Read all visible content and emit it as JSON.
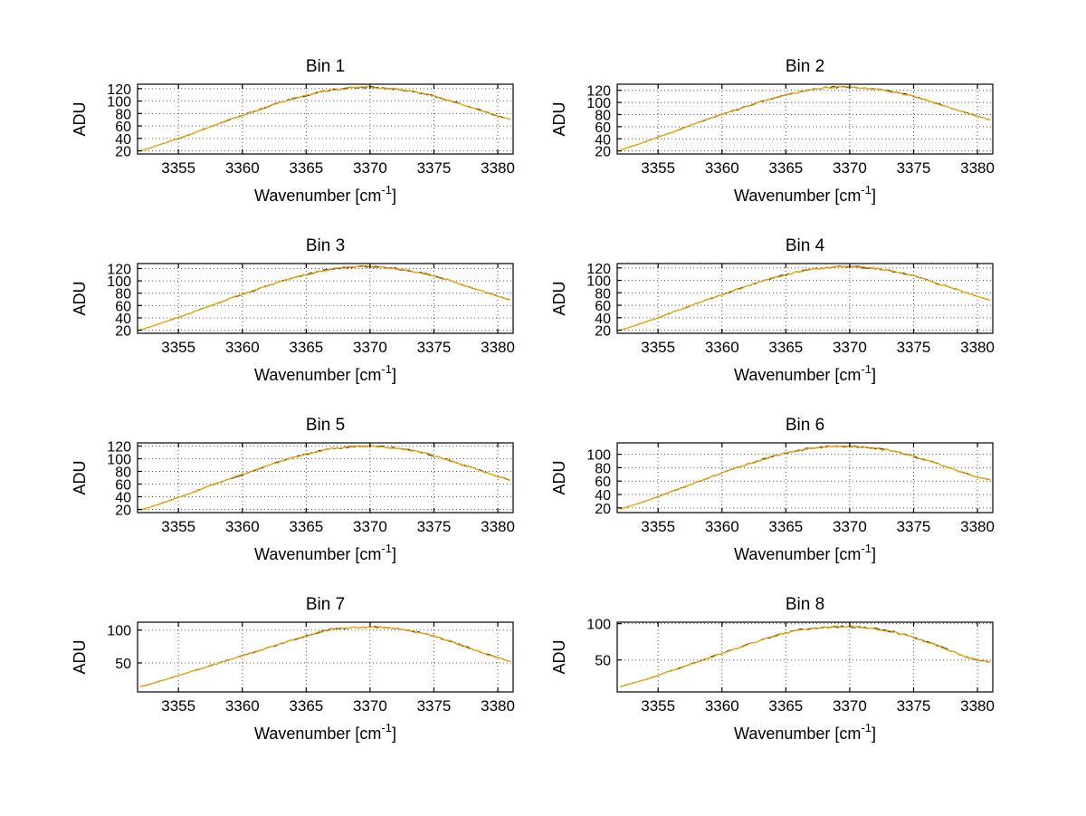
{
  "figure": {
    "background": "#ffffff",
    "line_color": "#f0a500",
    "speck_color": "#2a2a2a",
    "axis_color": "#000000",
    "grid_color": "#555555"
  },
  "shared_x": [
    3352,
    3353,
    3354,
    3355,
    3356,
    3357,
    3358,
    3359,
    3360,
    3361,
    3362,
    3363,
    3364,
    3365,
    3366,
    3367,
    3368,
    3369,
    3370,
    3371,
    3372,
    3373,
    3374,
    3375,
    3376,
    3377,
    3378,
    3379,
    3380,
    3381
  ],
  "chart_data": [
    {
      "type": "line",
      "title": "Bin 1",
      "xlabel": "Wavenumber [cm^-1]",
      "xlabel_pre": "Wavenumber [cm",
      "xlabel_sup": "-1",
      "xlabel_post": "]",
      "ylabel": "ADU",
      "xlim": [
        3351.8,
        3381.2
      ],
      "ylim": [
        15,
        127
      ],
      "xticks": [
        3355,
        3360,
        3365,
        3370,
        3375,
        3380
      ],
      "yticks": [
        20,
        40,
        60,
        80,
        100,
        120
      ],
      "grid": true,
      "legend": "none",
      "y": [
        20,
        26,
        33,
        40,
        47,
        55,
        62,
        70,
        77,
        84,
        91,
        98,
        104,
        109,
        114,
        118,
        120,
        122,
        122,
        121,
        119,
        117,
        113,
        108,
        102,
        96,
        89,
        83,
        76,
        70
      ]
    },
    {
      "type": "line",
      "title": "Bin 2",
      "xlabel": "Wavenumber [cm^-1]",
      "xlabel_pre": "Wavenumber [cm",
      "xlabel_sup": "-1",
      "xlabel_post": "]",
      "ylabel": "ADU",
      "xlim": [
        3351.8,
        3381.2
      ],
      "ylim": [
        15,
        130
      ],
      "xticks": [
        3355,
        3360,
        3365,
        3370,
        3375,
        3380
      ],
      "yticks": [
        20,
        40,
        60,
        80,
        100,
        120
      ],
      "grid": true,
      "legend": "none",
      "y": [
        21,
        28,
        35,
        43,
        50,
        58,
        66,
        73,
        80,
        87,
        94,
        101,
        107,
        112,
        117,
        121,
        124,
        125,
        125,
        124,
        122,
        119,
        115,
        110,
        104,
        97,
        90,
        84,
        77,
        71
      ]
    },
    {
      "type": "line",
      "title": "Bin 3",
      "xlabel": "Wavenumber [cm^-1]",
      "xlabel_pre": "Wavenumber [cm",
      "xlabel_sup": "-1",
      "xlabel_post": "]",
      "ylabel": "ADU",
      "xlim": [
        3351.8,
        3381.2
      ],
      "ylim": [
        15,
        128
      ],
      "xticks": [
        3355,
        3360,
        3365,
        3370,
        3375,
        3380
      ],
      "yticks": [
        20,
        40,
        60,
        80,
        100,
        120
      ],
      "grid": true,
      "legend": "none",
      "y": [
        20,
        27,
        34,
        41,
        48,
        56,
        63,
        71,
        78,
        85,
        92,
        99,
        105,
        110,
        115,
        119,
        121,
        123,
        123,
        122,
        120,
        117,
        113,
        108,
        102,
        95,
        88,
        82,
        75,
        69
      ]
    },
    {
      "type": "line",
      "title": "Bin 4",
      "xlabel": "Wavenumber [cm^-1]",
      "xlabel_pre": "Wavenumber [cm",
      "xlabel_sup": "-1",
      "xlabel_post": "]",
      "ylabel": "ADU",
      "xlim": [
        3351.8,
        3381.2
      ],
      "ylim": [
        15,
        127
      ],
      "xticks": [
        3355,
        3360,
        3365,
        3370,
        3375,
        3380
      ],
      "yticks": [
        20,
        40,
        60,
        80,
        100,
        120
      ],
      "grid": true,
      "legend": "none",
      "y": [
        20,
        26,
        33,
        40,
        48,
        55,
        63,
        70,
        77,
        84,
        91,
        98,
        104,
        109,
        114,
        118,
        120,
        122,
        122,
        121,
        119,
        116,
        112,
        107,
        101,
        94,
        88,
        81,
        74,
        68
      ]
    },
    {
      "type": "line",
      "title": "Bin 5",
      "xlabel": "Wavenumber [cm^-1]",
      "xlabel_pre": "Wavenumber [cm",
      "xlabel_sup": "-1",
      "xlabel_post": "]",
      "ylabel": "ADU",
      "xlim": [
        3351.8,
        3381.2
      ],
      "ylim": [
        15,
        125
      ],
      "xticks": [
        3355,
        3360,
        3365,
        3370,
        3375,
        3380
      ],
      "yticks": [
        20,
        40,
        60,
        80,
        100,
        120
      ],
      "grid": true,
      "legend": "none",
      "y": [
        19,
        25,
        32,
        39,
        46,
        54,
        61,
        68,
        75,
        82,
        89,
        96,
        102,
        107,
        112,
        116,
        118,
        120,
        120,
        119,
        117,
        114,
        110,
        105,
        99,
        92,
        86,
        79,
        72,
        66
      ]
    },
    {
      "type": "line",
      "title": "Bin 6",
      "xlabel": "Wavenumber [cm^-1]",
      "xlabel_pre": "Wavenumber [cm",
      "xlabel_sup": "-1",
      "xlabel_post": "]",
      "ylabel": "ADU",
      "xlim": [
        3351.8,
        3381.2
      ],
      "ylim": [
        13,
        117
      ],
      "xticks": [
        3355,
        3360,
        3365,
        3370,
        3375,
        3380
      ],
      "yticks": [
        20,
        40,
        60,
        80,
        100
      ],
      "grid": true,
      "legend": "none",
      "y": [
        18,
        24,
        30,
        37,
        44,
        51,
        58,
        65,
        72,
        79,
        85,
        91,
        97,
        102,
        106,
        109,
        111,
        112,
        112,
        111,
        109,
        106,
        102,
        97,
        91,
        85,
        78,
        72,
        66,
        62
      ]
    },
    {
      "type": "line",
      "title": "Bin 7",
      "xlabel": "Wavenumber [cm^-1]",
      "xlabel_pre": "Wavenumber [cm",
      "xlabel_sup": "-1",
      "xlabel_post": "]",
      "ylabel": "ADU",
      "xlim": [
        3351.8,
        3381.2
      ],
      "ylim": [
        6,
        112
      ],
      "xticks": [
        3355,
        3360,
        3365,
        3370,
        3375,
        3380
      ],
      "yticks": [
        50,
        100
      ],
      "grid": true,
      "legend": "none",
      "y": [
        14,
        19,
        25,
        31,
        37,
        43,
        49,
        55,
        61,
        67,
        73,
        79,
        85,
        91,
        97,
        101,
        103,
        104,
        105,
        104,
        103,
        100,
        96,
        91,
        85,
        78,
        71,
        64,
        58,
        52
      ]
    },
    {
      "type": "line",
      "title": "Bin 8",
      "xlabel": "Wavenumber [cm^-1]",
      "xlabel_pre": "Wavenumber [cm",
      "xlabel_sup": "-1",
      "xlabel_post": "]",
      "ylabel": "ADU",
      "xlim": [
        3351.8,
        3381.2
      ],
      "ylim": [
        6,
        102
      ],
      "xticks": [
        3355,
        3360,
        3365,
        3370,
        3375,
        3380
      ],
      "yticks": [
        50,
        100
      ],
      "grid": true,
      "legend": "none",
      "y": [
        13,
        18,
        23,
        29,
        35,
        41,
        47,
        53,
        59,
        65,
        71,
        77,
        82,
        87,
        91,
        93,
        95,
        96,
        96,
        95,
        93,
        90,
        86,
        81,
        75,
        69,
        62,
        55,
        50,
        47
      ]
    }
  ]
}
